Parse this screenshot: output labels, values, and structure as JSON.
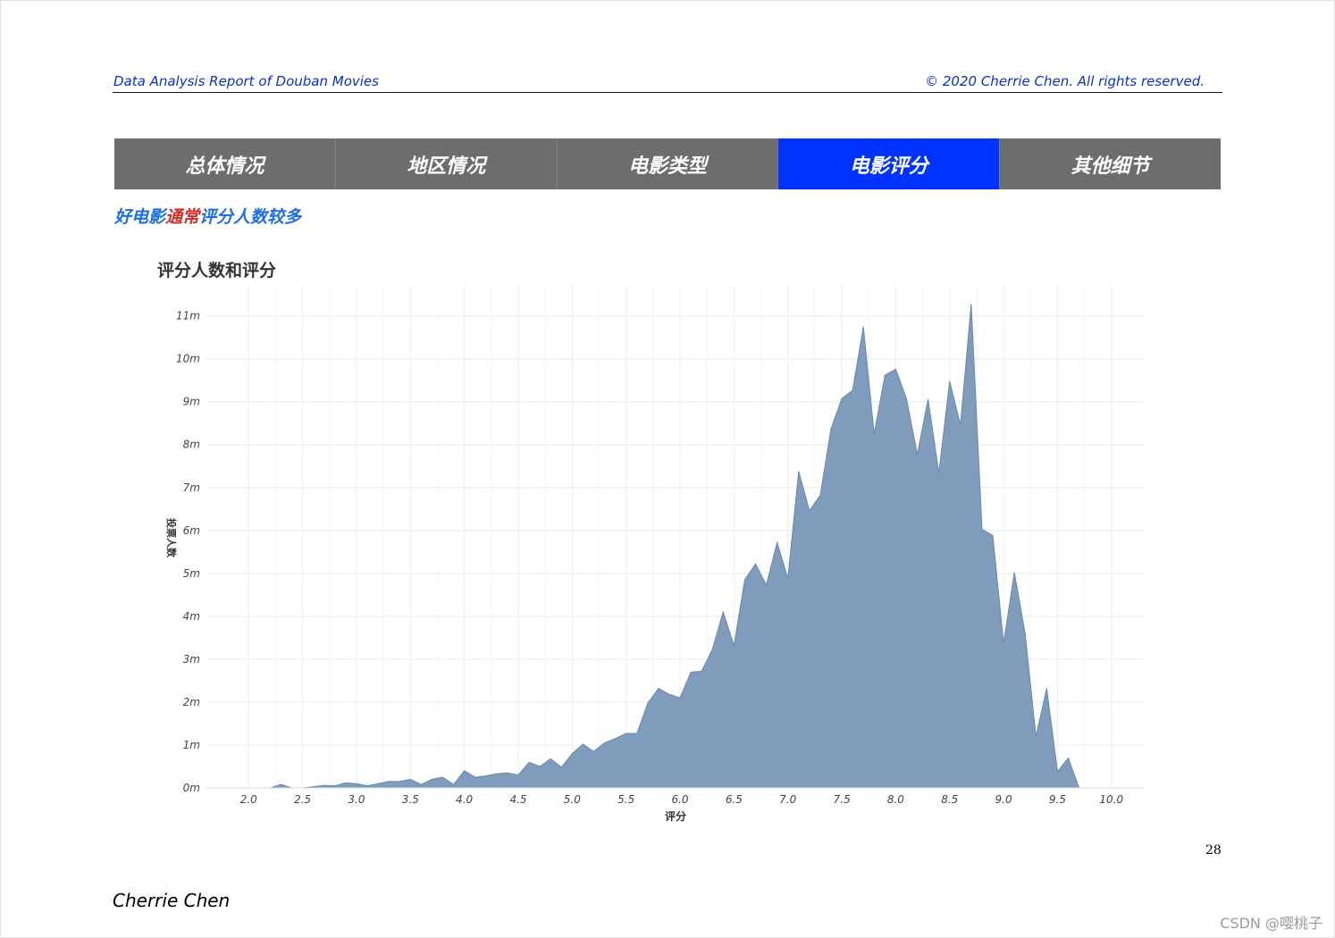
{
  "header": {
    "left": "Data Analysis Report of Douban Movies",
    "right": "© 2020 Cherrie Chen. All rights reserved."
  },
  "tabs": [
    {
      "label": "总体情况",
      "active": false
    },
    {
      "label": "地区情况",
      "active": false
    },
    {
      "label": "电影类型",
      "active": false
    },
    {
      "label": "电影评分",
      "active": true
    },
    {
      "label": "其他细节",
      "active": false
    }
  ],
  "headline": {
    "part1": "好电影",
    "part2": "通常",
    "part3": "评分人数较多"
  },
  "footer": {
    "page_number": "28",
    "author": "Cherrie Chen",
    "watermark": "CSDN @嘤桃子"
  },
  "colors": {
    "accent_blue": "#0033ff",
    "tab_gray": "#6d6d6d",
    "area_fill": "#7f9cbd",
    "area_stroke": "#6b88ad",
    "headline_blue": "#1a6ee8",
    "headline_red": "#d42a2a"
  },
  "chart_data": {
    "type": "area",
    "title": "评分人数和评分",
    "xlabel": "评分",
    "ylabel": "投票人数",
    "xlim": [
      1.6,
      10.3
    ],
    "ylim": [
      0,
      11700000
    ],
    "grid": true,
    "x_ticks": [
      2.0,
      2.5,
      3.0,
      3.5,
      4.0,
      4.5,
      5.0,
      5.5,
      6.0,
      6.5,
      7.0,
      7.5,
      8.0,
      8.5,
      9.0,
      9.5,
      10.0
    ],
    "x_tick_labels": [
      "2.0",
      "2.5",
      "3.0",
      "3.5",
      "4.0",
      "4.5",
      "5.0",
      "5.5",
      "6.0",
      "6.5",
      "7.0",
      "7.5",
      "8.0",
      "8.5",
      "9.0",
      "9.5",
      "10.0"
    ],
    "y_ticks": [
      0,
      1000000,
      2000000,
      3000000,
      4000000,
      5000000,
      6000000,
      7000000,
      8000000,
      9000000,
      10000000,
      11000000
    ],
    "y_tick_labels": [
      "0m",
      "1m",
      "2m",
      "3m",
      "4m",
      "5m",
      "6m",
      "7m",
      "8m",
      "9m",
      "10m",
      "11m"
    ],
    "x": [
      2.2,
      2.3,
      2.4,
      2.5,
      2.6,
      2.7,
      2.8,
      2.9,
      3.0,
      3.1,
      3.2,
      3.3,
      3.4,
      3.5,
      3.6,
      3.7,
      3.8,
      3.9,
      4.0,
      4.1,
      4.2,
      4.3,
      4.4,
      4.5,
      4.6,
      4.7,
      4.8,
      4.9,
      5.0,
      5.1,
      5.2,
      5.3,
      5.4,
      5.5,
      5.6,
      5.7,
      5.8,
      5.9,
      6.0,
      6.1,
      6.2,
      6.3,
      6.4,
      6.5,
      6.6,
      6.7,
      6.8,
      6.9,
      7.0,
      7.1,
      7.2,
      7.3,
      7.4,
      7.5,
      7.6,
      7.7,
      7.8,
      7.9,
      8.0,
      8.1,
      8.2,
      8.3,
      8.4,
      8.5,
      8.6,
      8.7,
      8.8,
      8.9,
      9.0,
      9.1,
      9.2,
      9.3,
      9.4,
      9.5,
      9.6,
      9.7
    ],
    "y": [
      0,
      80000,
      0,
      0,
      30000,
      60000,
      50000,
      120000,
      100000,
      50000,
      100000,
      150000,
      150000,
      200000,
      80000,
      200000,
      250000,
      80000,
      400000,
      250000,
      280000,
      330000,
      350000,
      300000,
      600000,
      500000,
      680000,
      480000,
      800000,
      1020000,
      850000,
      1050000,
      1150000,
      1270000,
      1270000,
      1970000,
      2320000,
      2180000,
      2100000,
      2700000,
      2720000,
      3230000,
      4100000,
      3320000,
      4850000,
      5220000,
      4730000,
      5720000,
      4880000,
      7380000,
      6460000,
      6820000,
      8370000,
      9070000,
      9270000,
      10750000,
      8250000,
      9620000,
      9760000,
      9070000,
      7770000,
      9060000,
      7340000,
      9480000,
      8460000,
      11280000,
      6030000,
      5880000,
      3370000,
      5020000,
      3600000,
      1200000,
      2320000,
      380000,
      700000,
      0
    ]
  }
}
